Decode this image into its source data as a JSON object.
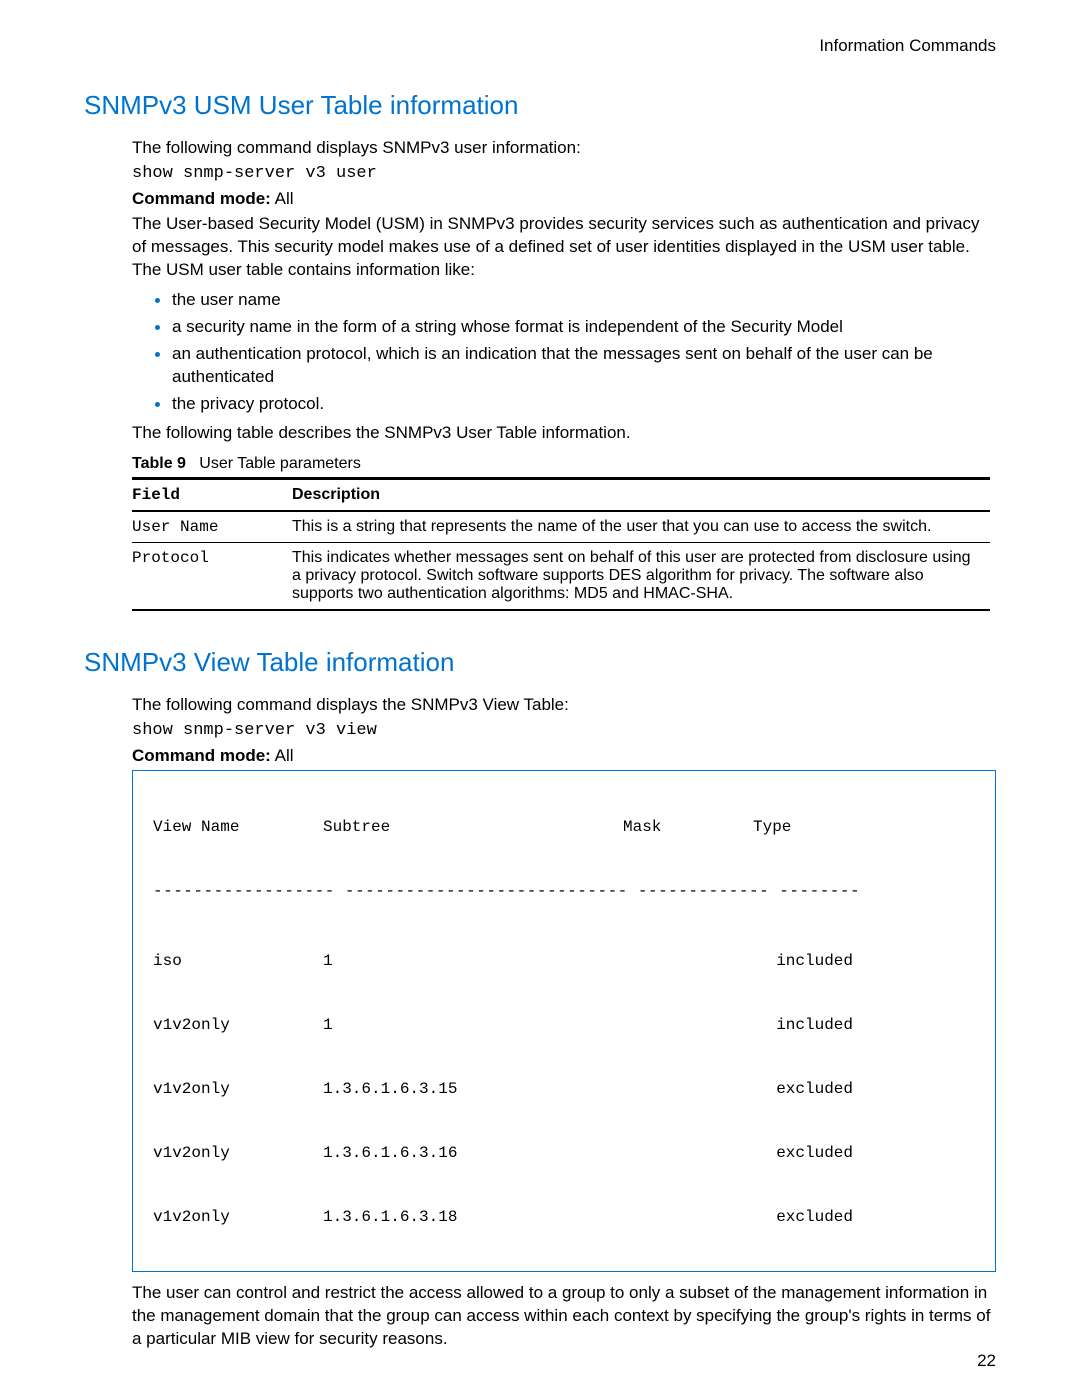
{
  "header": {
    "right": "Information Commands"
  },
  "page_number": "22",
  "section1": {
    "title": "SNMPv3 USM User Table information",
    "intro": "The following command displays SNMPv3 user information:",
    "command": "show snmp-server v3 user",
    "mode_label": "Command mode:",
    "mode_value": "All",
    "para1": "The User-based Security Model (USM) in SNMPv3 provides security services such as authentication and privacy of messages. This security model makes use of a defined set of user identities displayed in the USM user table. The USM user table contains information like:",
    "bullets": [
      "the user name",
      "a security name in the form of a string whose format is independent of the Security Model",
      "an authentication protocol, which is an indication that the messages sent on behalf of the user can be authenticated",
      "the privacy protocol."
    ],
    "para2": "The following table describes the SNMPv3 User Table information.",
    "table_caption_label": "Table 9",
    "table_caption_text": "User Table parameters",
    "table": {
      "col_field": "Field",
      "col_desc": "Description",
      "rows": [
        {
          "field": "User Name",
          "desc": "This is a string that represents the name of the user that you can use to access the switch."
        },
        {
          "field": "Protocol",
          "desc": "This indicates whether messages sent on behalf of this user are protected from disclosure using a privacy protocol. Switch software supports DES algorithm for privacy. The software also supports two authentication algorithms: MD5 and HMAC-SHA."
        }
      ]
    }
  },
  "section2": {
    "title": "SNMPv3 View Table information",
    "intro": "The following command displays the SNMPv3 View Table:",
    "command": "show snmp-server v3 view",
    "mode_label": "Command mode:",
    "mode_value": "All",
    "view": {
      "headers": {
        "name": "View Name",
        "sub": "Subtree",
        "mask": "Mask",
        "type": "Type"
      },
      "dashes": "------------------ ---------------------------- ------------- --------",
      "rows": [
        {
          "name": "iso",
          "sub": "1",
          "mask": "",
          "type": "included"
        },
        {
          "name": "v1v2only",
          "sub": "1",
          "mask": "",
          "type": "included"
        },
        {
          "name": "v1v2only",
          "sub": "1.3.6.1.6.3.15",
          "mask": "",
          "type": "excluded"
        },
        {
          "name": "v1v2only",
          "sub": "1.3.6.1.6.3.16",
          "mask": "",
          "type": "excluded"
        },
        {
          "name": "v1v2only",
          "sub": "1.3.6.1.6.3.18",
          "mask": "",
          "type": "excluded"
        }
      ]
    },
    "para_after": "The user can control and restrict the access allowed to a group to only a subset of the management information in the management domain that the group can access within each context by specifying the group's rights in terms of a particular MIB view for security reasons."
  }
}
